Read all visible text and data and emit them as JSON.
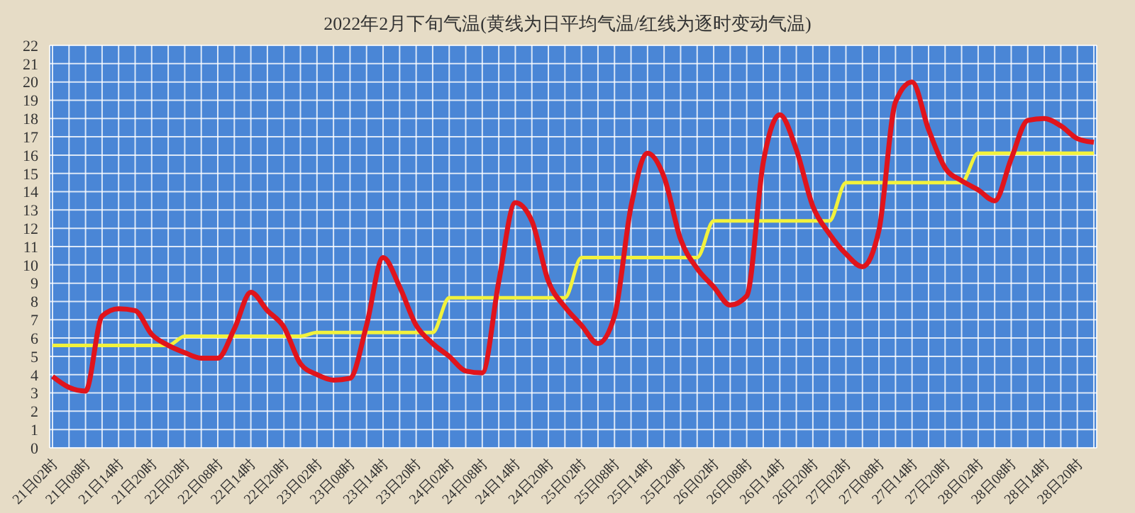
{
  "chart_data": {
    "type": "line",
    "title": "2022年2月下旬气温(黄线为日平均气温/红线为逐时变动气温)",
    "categories": [
      "21日02时",
      null,
      "21日08时",
      null,
      "21日14时",
      null,
      "21日20时",
      null,
      "22日02时",
      null,
      "22日08时",
      null,
      "22日14时",
      null,
      "22日20时",
      null,
      "23日02时",
      null,
      "23日08时",
      null,
      "23日14时",
      null,
      "23日20时",
      null,
      "24日02时",
      null,
      "24日08时",
      null,
      "24日14时",
      null,
      "24日20时",
      null,
      "25日02时",
      null,
      "25日08时",
      null,
      "25日14时",
      null,
      "25日20时",
      null,
      "26日02时",
      null,
      "26日08时",
      null,
      "26日14时",
      null,
      "26日20时",
      null,
      "27日02时",
      null,
      "27日08时",
      null,
      "27日14时",
      null,
      "27日20时",
      null,
      "28日02时",
      null,
      "28日08时",
      null,
      "28日14时",
      null,
      "28日20时",
      null
    ],
    "series": [
      {
        "color": "#f2f23c",
        "values": [
          5.6,
          5.6,
          5.6,
          5.6,
          5.6,
          5.6,
          5.6,
          5.6,
          6.1,
          6.1,
          6.1,
          6.1,
          6.1,
          6.1,
          6.1,
          6.1,
          6.3,
          6.3,
          6.3,
          6.3,
          6.3,
          6.3,
          6.3,
          6.3,
          8.2,
          8.2,
          8.2,
          8.2,
          8.2,
          8.2,
          8.2,
          8.2,
          10.4,
          10.4,
          10.4,
          10.4,
          10.4,
          10.4,
          10.4,
          10.4,
          12.4,
          12.4,
          12.4,
          12.4,
          12.4,
          12.4,
          12.4,
          12.4,
          14.5,
          14.5,
          14.5,
          14.5,
          14.5,
          14.5,
          14.5,
          14.5,
          16.1,
          16.1,
          16.1,
          16.1,
          16.1,
          16.1,
          16.1,
          16.1
        ]
      },
      {
        "color": "#e0141c",
        "values": [
          3.9,
          3.3,
          3.1,
          7.2,
          7.6,
          7.5,
          6.2,
          5.6,
          5.2,
          4.9,
          4.9,
          6.5,
          8.5,
          7.5,
          6.6,
          4.6,
          4.0,
          3.7,
          3.8,
          6.7,
          10.4,
          8.8,
          6.7,
          5.7,
          5.0,
          4.2,
          4.1,
          9.1,
          13.4,
          12.4,
          9.1,
          7.7,
          6.7,
          5.7,
          7.2,
          13.2,
          16.1,
          14.8,
          11.4,
          9.8,
          8.8,
          7.8,
          8.3,
          15.6,
          18.2,
          16.3,
          13.2,
          11.7,
          10.6,
          9.9,
          11.9,
          18.9,
          20.0,
          17.4,
          15.3,
          14.6,
          14.1,
          13.5,
          15.8,
          17.9,
          18.0,
          17.6,
          16.9,
          16.7
        ]
      }
    ],
    "ylim": [
      0,
      22
    ],
    "yticks": [
      0,
      1,
      2,
      3,
      4,
      5,
      6,
      7,
      8,
      9,
      10,
      11,
      12,
      13,
      14,
      15,
      16,
      17,
      18,
      19,
      20,
      21,
      22
    ],
    "grid": true,
    "legend": false,
    "marker": "none",
    "line_style": "solid"
  }
}
